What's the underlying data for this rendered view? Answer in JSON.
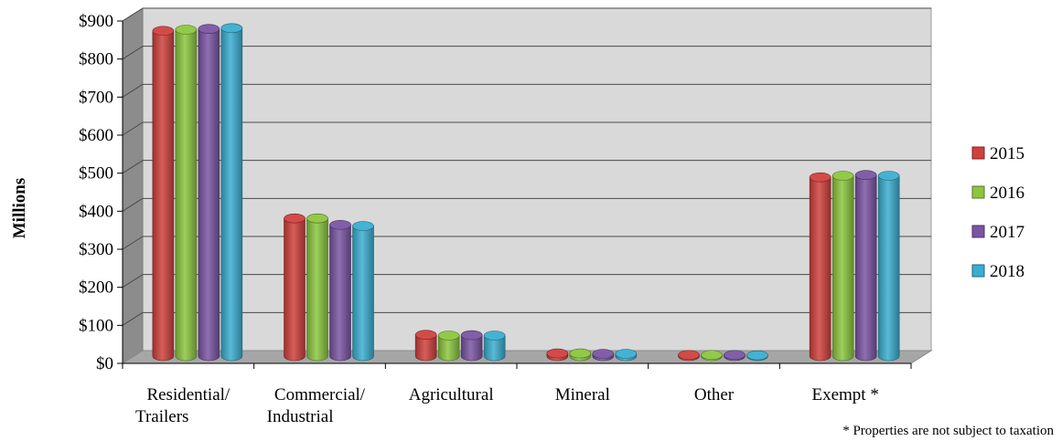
{
  "chart_data": {
    "type": "bar",
    "title": "",
    "xlabel": "",
    "ylabel": "Millions",
    "ylim": [
      0,
      900
    ],
    "y_ticks": [
      "$0",
      "$100",
      "$200",
      "$300",
      "$400",
      "$500",
      "$600",
      "$700",
      "$800",
      "$900"
    ],
    "categories": [
      [
        "Residential/",
        "Trailers"
      ],
      [
        "Commercial/",
        "Industrial"
      ],
      [
        "Agricultural"
      ],
      [
        "Mineral"
      ],
      [
        "Other"
      ],
      [
        "Exempt *"
      ]
    ],
    "series": [
      {
        "name": "2015",
        "color": "#d0413d",
        "values": [
          855,
          362,
          56,
          7,
          3,
          470
        ]
      },
      {
        "name": "2016",
        "color": "#8cc63f",
        "values": [
          858,
          362,
          54,
          7,
          3,
          474
        ]
      },
      {
        "name": "2017",
        "color": "#7b55a3",
        "values": [
          860,
          345,
          55,
          6,
          3,
          476
        ]
      },
      {
        "name": "2018",
        "color": "#3aaed0",
        "values": [
          862,
          342,
          54,
          6,
          2,
          474
        ]
      }
    ],
    "grid": true,
    "legend": "right",
    "footnote": "* Properties are not subject to taxation"
  }
}
